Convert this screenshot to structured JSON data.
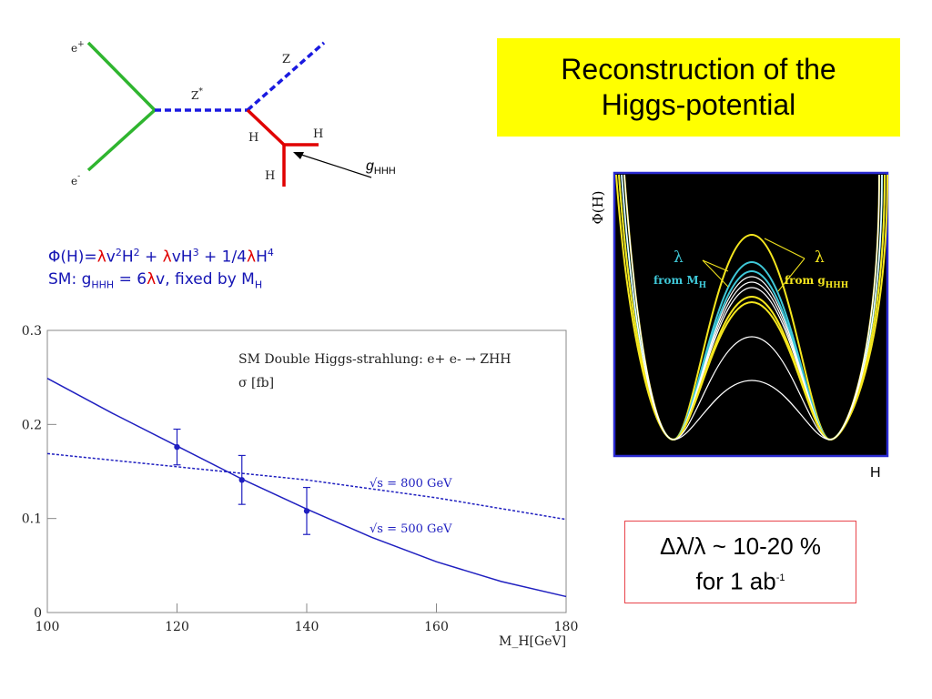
{
  "slide": {
    "title_line1": "Reconstruction of the",
    "title_line2": "Higgs-potential",
    "result_line1": "Δλ/λ ~ 10-20 %",
    "result_line2_prefix": "for 1 ab",
    "result_line2_sup": "-1"
  },
  "feynman": {
    "eplus": "e",
    "eplus_sup": "+",
    "eminus": "e",
    "eminus_sup": "-",
    "zstar": "Z",
    "zstar_sup": "*",
    "z": "Z",
    "h1": "H",
    "h2": "H",
    "h3": "H",
    "ghhh": "g",
    "ghhh_sub": "HHH"
  },
  "formula": {
    "line1": {
      "a": "Φ(H)=",
      "lambda": "λ",
      "b": "v",
      "b_sup": "2",
      "c": "H",
      "c_sup": "2",
      "d": " + ",
      "e": "vH",
      "e_sup": "3",
      "f": " + 1/4",
      "g": "H",
      "g_sup": "4"
    },
    "line2": {
      "a": "SM: g",
      "a_sub": "HHH",
      "b": " = 6",
      "lambda": "λ",
      "c": "v, fixed by M",
      "c_sub": "H"
    }
  },
  "potential": {
    "ylabel": "Φ(H)",
    "xlabel": "H",
    "left_label": "λ",
    "left_from": "from M",
    "left_from_sub": "H",
    "right_label": "λ",
    "right_from": "from g",
    "right_from_sub": "HHH",
    "colors": {
      "frame": "#2a2ad0",
      "bg": "#000000",
      "yellow": "#f5e61e",
      "cyan": "#3fc8d8",
      "white": "#ffffff"
    }
  },
  "chart_data": {
    "type": "line",
    "title": "SM Double Higgs-strahlung: e+ e- → ZHH",
    "subtitle": "σ [fb]",
    "xlabel": "M_H[GeV]",
    "xlim": [
      100,
      180
    ],
    "ylim": [
      0,
      0.3
    ],
    "xticks": [
      "100",
      "120",
      "140",
      "160",
      "180"
    ],
    "yticks": [
      "0",
      "0.1",
      "0.2",
      "0.3"
    ],
    "series": [
      {
        "name": "√s = 800 GeV",
        "style": "dashed",
        "x": [
          100,
          120,
          140,
          160,
          180
        ],
        "y": [
          0.169,
          0.155,
          0.141,
          0.122,
          0.099
        ]
      },
      {
        "name": "√s = 500 GeV",
        "style": "solid",
        "x": [
          100,
          110,
          120,
          130,
          140,
          150,
          160,
          170,
          180
        ],
        "y": [
          0.249,
          0.212,
          0.177,
          0.142,
          0.11,
          0.08,
          0.054,
          0.033,
          0.017
        ]
      }
    ],
    "points": [
      {
        "x": 120,
        "y": 0.176,
        "err": 0.019
      },
      {
        "x": 130,
        "y": 0.141,
        "err": 0.026
      },
      {
        "x": 140,
        "y": 0.108,
        "err": 0.025
      }
    ],
    "colors": {
      "line": "#2020c0",
      "frame": "#888888"
    }
  }
}
